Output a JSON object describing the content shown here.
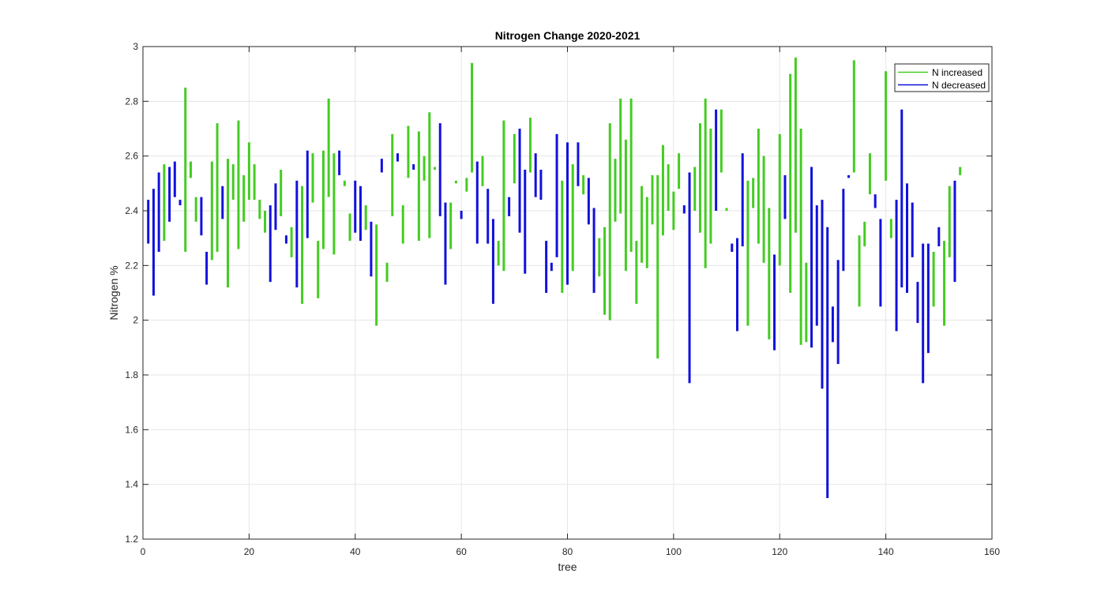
{
  "chart_data": {
    "type": "bar",
    "title": "Nitrogen Change 2020-2021",
    "xlabel": "tree",
    "ylabel": "Nitrogen %",
    "xlim": [
      0,
      160
    ],
    "ylim": [
      1.2,
      3
    ],
    "xticks": [
      "0",
      "20",
      "40",
      "60",
      "80",
      "100",
      "120",
      "140",
      "160"
    ],
    "yticks": [
      "1.2",
      "1.4",
      "1.6",
      "1.8",
      "2",
      "2.2",
      "2.4",
      "2.6",
      "2.8",
      "3"
    ],
    "grid": true,
    "legend_position": "top-right",
    "colors": {
      "increased": "#44cc22",
      "decreased": "#1111dd",
      "grid": "#e6e6e6",
      "axis": "#262626"
    },
    "series": [
      {
        "name": "N increased",
        "key": "increased"
      },
      {
        "name": "N decreased",
        "key": "decreased"
      }
    ],
    "bars": [
      [
        1,
        2.28,
        2.44,
        "decreased"
      ],
      [
        2,
        2.09,
        2.48,
        "decreased"
      ],
      [
        3,
        2.25,
        2.54,
        "decreased"
      ],
      [
        4,
        2.29,
        2.57,
        "increased"
      ],
      [
        5,
        2.36,
        2.56,
        "decreased"
      ],
      [
        6,
        2.45,
        2.58,
        "decreased"
      ],
      [
        7,
        2.42,
        2.44,
        "decreased"
      ],
      [
        8,
        2.25,
        2.85,
        "increased"
      ],
      [
        9,
        2.52,
        2.58,
        "increased"
      ],
      [
        10,
        2.36,
        2.45,
        "increased"
      ],
      [
        11,
        2.31,
        2.45,
        "decreased"
      ],
      [
        12,
        2.13,
        2.25,
        "decreased"
      ],
      [
        13,
        2.22,
        2.58,
        "increased"
      ],
      [
        14,
        2.25,
        2.72,
        "increased"
      ],
      [
        15,
        2.37,
        2.49,
        "decreased"
      ],
      [
        16,
        2.12,
        2.59,
        "increased"
      ],
      [
        17,
        2.44,
        2.57,
        "increased"
      ],
      [
        18,
        2.26,
        2.73,
        "increased"
      ],
      [
        19,
        2.36,
        2.53,
        "increased"
      ],
      [
        20,
        2.44,
        2.65,
        "increased"
      ],
      [
        21,
        2.44,
        2.57,
        "increased"
      ],
      [
        22,
        2.37,
        2.44,
        "increased"
      ],
      [
        23,
        2.32,
        2.4,
        "increased"
      ],
      [
        24,
        2.14,
        2.42,
        "decreased"
      ],
      [
        25,
        2.33,
        2.5,
        "decreased"
      ],
      [
        26,
        2.38,
        2.55,
        "increased"
      ],
      [
        27,
        2.28,
        2.31,
        "decreased"
      ],
      [
        28,
        2.23,
        2.34,
        "increased"
      ],
      [
        29,
        2.12,
        2.51,
        "decreased"
      ],
      [
        30,
        2.06,
        2.49,
        "increased"
      ],
      [
        31,
        2.3,
        2.62,
        "decreased"
      ],
      [
        32,
        2.43,
        2.61,
        "increased"
      ],
      [
        33,
        2.08,
        2.29,
        "increased"
      ],
      [
        34,
        2.26,
        2.62,
        "increased"
      ],
      [
        35,
        2.45,
        2.81,
        "increased"
      ],
      [
        36,
        2.24,
        2.61,
        "increased"
      ],
      [
        37,
        2.53,
        2.62,
        "decreased"
      ],
      [
        38,
        2.49,
        2.51,
        "increased"
      ],
      [
        39,
        2.29,
        2.39,
        "increased"
      ],
      [
        40,
        2.32,
        2.51,
        "decreased"
      ],
      [
        41,
        2.29,
        2.49,
        "decreased"
      ],
      [
        42,
        2.33,
        2.42,
        "increased"
      ],
      [
        43,
        2.16,
        2.36,
        "decreased"
      ],
      [
        44,
        1.98,
        2.35,
        "increased"
      ],
      [
        45,
        2.54,
        2.59,
        "decreased"
      ],
      [
        46,
        2.14,
        2.21,
        "increased"
      ],
      [
        47,
        2.38,
        2.68,
        "increased"
      ],
      [
        48,
        2.58,
        2.61,
        "decreased"
      ],
      [
        49,
        2.28,
        2.42,
        "increased"
      ],
      [
        50,
        2.52,
        2.71,
        "increased"
      ],
      [
        51,
        2.55,
        2.57,
        "decreased"
      ],
      [
        52,
        2.29,
        2.69,
        "increased"
      ],
      [
        53,
        2.51,
        2.6,
        "increased"
      ],
      [
        54,
        2.3,
        2.76,
        "increased"
      ],
      [
        55,
        2.55,
        2.56,
        "increased"
      ],
      [
        56,
        2.38,
        2.72,
        "decreased"
      ],
      [
        57,
        2.13,
        2.43,
        "decreased"
      ],
      [
        58,
        2.26,
        2.43,
        "increased"
      ],
      [
        59,
        2.5,
        2.51,
        "increased"
      ],
      [
        60,
        2.37,
        2.4,
        "decreased"
      ],
      [
        61,
        2.47,
        2.52,
        "increased"
      ],
      [
        62,
        2.54,
        2.94,
        "increased"
      ],
      [
        63,
        2.28,
        2.58,
        "decreased"
      ],
      [
        64,
        2.49,
        2.6,
        "increased"
      ],
      [
        65,
        2.28,
        2.48,
        "decreased"
      ],
      [
        66,
        2.06,
        2.37,
        "decreased"
      ],
      [
        67,
        2.2,
        2.29,
        "increased"
      ],
      [
        68,
        2.18,
        2.73,
        "increased"
      ],
      [
        69,
        2.38,
        2.45,
        "decreased"
      ],
      [
        70,
        2.5,
        2.68,
        "increased"
      ],
      [
        71,
        2.32,
        2.7,
        "decreased"
      ],
      [
        72,
        2.17,
        2.55,
        "decreased"
      ],
      [
        73,
        2.54,
        2.74,
        "increased"
      ],
      [
        74,
        2.45,
        2.61,
        "decreased"
      ],
      [
        75,
        2.44,
        2.55,
        "decreased"
      ],
      [
        76,
        2.1,
        2.29,
        "decreased"
      ],
      [
        77,
        2.18,
        2.21,
        "decreased"
      ],
      [
        78,
        2.23,
        2.68,
        "decreased"
      ],
      [
        79,
        2.1,
        2.51,
        "increased"
      ],
      [
        80,
        2.13,
        2.65,
        "decreased"
      ],
      [
        81,
        2.18,
        2.57,
        "increased"
      ],
      [
        82,
        2.49,
        2.65,
        "decreased"
      ],
      [
        83,
        2.46,
        2.53,
        "increased"
      ],
      [
        84,
        2.35,
        2.52,
        "decreased"
      ],
      [
        85,
        2.1,
        2.41,
        "decreased"
      ],
      [
        86,
        2.16,
        2.3,
        "increased"
      ],
      [
        87,
        2.02,
        2.34,
        "increased"
      ],
      [
        88,
        2.0,
        2.72,
        "increased"
      ],
      [
        89,
        2.36,
        2.59,
        "increased"
      ],
      [
        90,
        2.39,
        2.81,
        "increased"
      ],
      [
        91,
        2.18,
        2.66,
        "increased"
      ],
      [
        92,
        2.25,
        2.81,
        "increased"
      ],
      [
        93,
        2.06,
        2.29,
        "increased"
      ],
      [
        94,
        2.21,
        2.49,
        "increased"
      ],
      [
        95,
        2.19,
        2.45,
        "increased"
      ],
      [
        96,
        2.35,
        2.53,
        "increased"
      ],
      [
        97,
        1.86,
        2.53,
        "increased"
      ],
      [
        98,
        2.31,
        2.64,
        "increased"
      ],
      [
        99,
        2.4,
        2.57,
        "increased"
      ],
      [
        100,
        2.33,
        2.47,
        "increased"
      ],
      [
        101,
        2.48,
        2.61,
        "increased"
      ],
      [
        102,
        2.39,
        2.42,
        "decreased"
      ],
      [
        103,
        1.77,
        2.54,
        "decreased"
      ],
      [
        104,
        2.4,
        2.56,
        "increased"
      ],
      [
        105,
        2.32,
        2.72,
        "increased"
      ],
      [
        106,
        2.19,
        2.81,
        "increased"
      ],
      [
        107,
        2.28,
        2.7,
        "increased"
      ],
      [
        108,
        2.4,
        2.77,
        "decreased"
      ],
      [
        109,
        2.54,
        2.77,
        "increased"
      ],
      [
        110,
        2.4,
        2.41,
        "increased"
      ],
      [
        111,
        2.25,
        2.28,
        "decreased"
      ],
      [
        112,
        1.96,
        2.3,
        "decreased"
      ],
      [
        113,
        2.27,
        2.61,
        "decreased"
      ],
      [
        114,
        1.98,
        2.51,
        "increased"
      ],
      [
        115,
        2.41,
        2.52,
        "increased"
      ],
      [
        116,
        2.28,
        2.7,
        "increased"
      ],
      [
        117,
        2.21,
        2.6,
        "increased"
      ],
      [
        118,
        1.93,
        2.41,
        "increased"
      ],
      [
        119,
        1.89,
        2.24,
        "decreased"
      ],
      [
        120,
        2.2,
        2.68,
        "increased"
      ],
      [
        121,
        2.37,
        2.53,
        "decreased"
      ],
      [
        122,
        2.1,
        2.9,
        "increased"
      ],
      [
        123,
        2.32,
        2.96,
        "increased"
      ],
      [
        124,
        1.91,
        2.7,
        "increased"
      ],
      [
        125,
        1.92,
        2.21,
        "increased"
      ],
      [
        126,
        1.9,
        2.56,
        "decreased"
      ],
      [
        127,
        1.98,
        2.42,
        "decreased"
      ],
      [
        128,
        1.75,
        2.44,
        "decreased"
      ],
      [
        129,
        1.35,
        2.34,
        "decreased"
      ],
      [
        130,
        1.92,
        2.05,
        "decreased"
      ],
      [
        131,
        1.84,
        2.22,
        "decreased"
      ],
      [
        132,
        2.18,
        2.48,
        "decreased"
      ],
      [
        133,
        2.52,
        2.53,
        "decreased"
      ],
      [
        134,
        2.54,
        2.95,
        "increased"
      ],
      [
        135,
        2.05,
        2.31,
        "increased"
      ],
      [
        136,
        2.27,
        2.36,
        "increased"
      ],
      [
        137,
        2.46,
        2.61,
        "increased"
      ],
      [
        138,
        2.41,
        2.46,
        "decreased"
      ],
      [
        139,
        2.05,
        2.37,
        "decreased"
      ],
      [
        140,
        2.51,
        2.91,
        "increased"
      ],
      [
        141,
        2.3,
        2.37,
        "increased"
      ],
      [
        142,
        1.96,
        2.44,
        "decreased"
      ],
      [
        143,
        2.12,
        2.77,
        "decreased"
      ],
      [
        144,
        2.1,
        2.5,
        "decreased"
      ],
      [
        145,
        2.23,
        2.43,
        "decreased"
      ],
      [
        146,
        1.99,
        2.14,
        "decreased"
      ],
      [
        147,
        1.77,
        2.28,
        "decreased"
      ],
      [
        148,
        1.88,
        2.28,
        "decreased"
      ],
      [
        149,
        2.05,
        2.25,
        "increased"
      ],
      [
        150,
        2.27,
        2.34,
        "decreased"
      ],
      [
        151,
        1.98,
        2.29,
        "increased"
      ],
      [
        152,
        2.23,
        2.49,
        "increased"
      ],
      [
        153,
        2.14,
        2.51,
        "decreased"
      ],
      [
        154,
        2.53,
        2.56,
        "increased"
      ]
    ]
  }
}
